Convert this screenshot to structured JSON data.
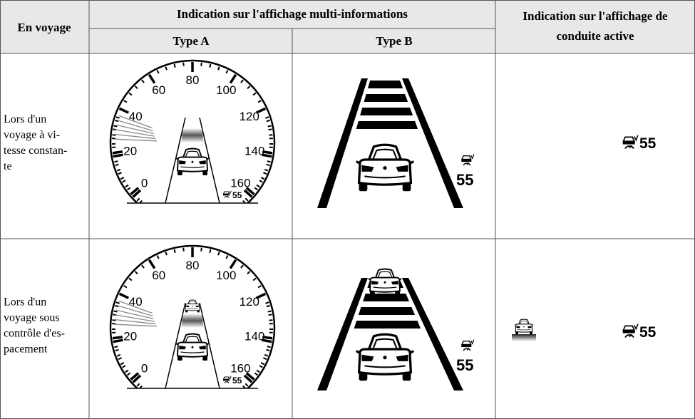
{
  "header": {
    "col1": "En voyage",
    "group": "Indication sur l'affichage multi-informations",
    "type_a": "Type A",
    "type_b": "Type B",
    "col4": [
      "Indication sur l'affichage de",
      "conduite active"
    ]
  },
  "rows": [
    {
      "label": [
        "Lors d'un",
        "voyage à vi-",
        "tesse constan-",
        "te"
      ],
      "type_a": {
        "scale": [
          "0",
          "20",
          "40",
          "60",
          "80",
          "100",
          "120",
          "140",
          "160"
        ],
        "set_speed": "55"
      },
      "type_b": {
        "set_speed": "55"
      },
      "active_display": {
        "set_speed": "55"
      }
    },
    {
      "label": [
        "Lors d'un",
        "voyage sous",
        "contrôle d'es-",
        "pacement"
      ],
      "type_a": {
        "scale": [
          "0",
          "20",
          "40",
          "60",
          "80",
          "100",
          "120",
          "140",
          "160"
        ],
        "set_speed": "55"
      },
      "type_b": {
        "set_speed": "55"
      },
      "active_display": {
        "set_speed": "55"
      }
    }
  ]
}
